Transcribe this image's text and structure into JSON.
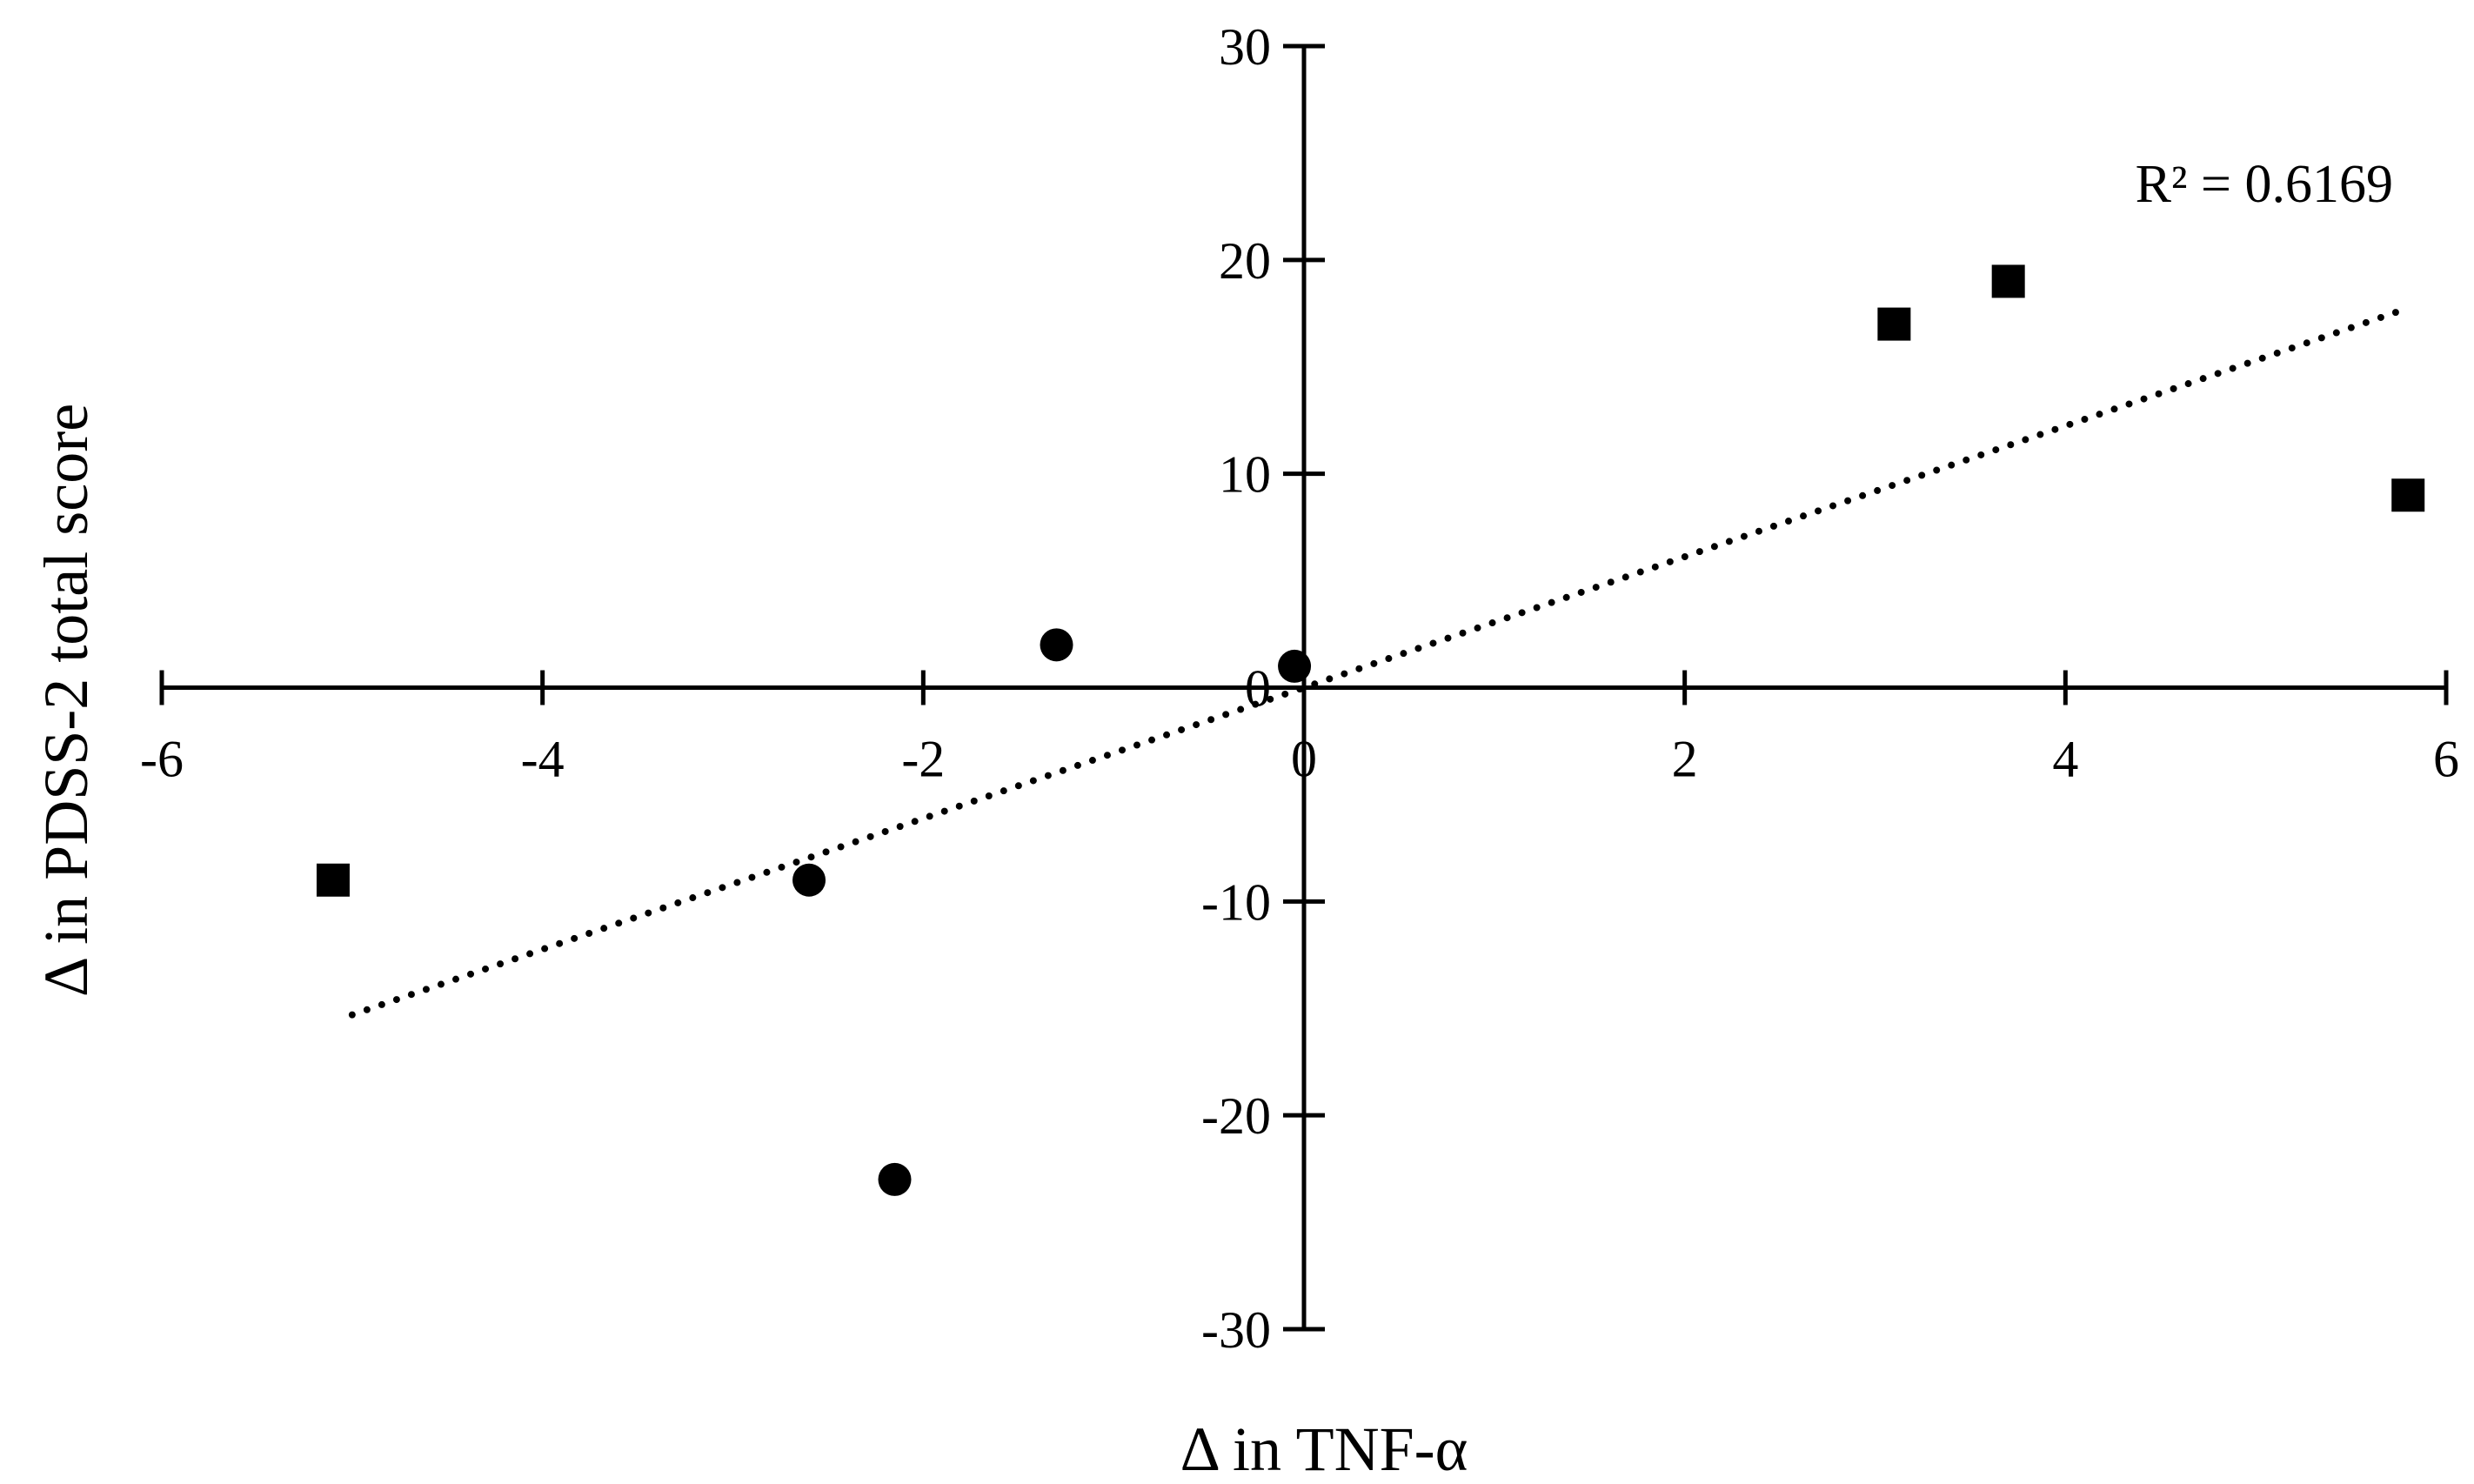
{
  "chart_data": {
    "type": "scatter",
    "title": "",
    "xlabel": "Δ in TNF-α",
    "ylabel": "Δ in PDSS-2 total score",
    "xlim": [
      -6,
      6
    ],
    "ylim": [
      -30,
      30
    ],
    "x_ticks": [
      -6,
      -4,
      -2,
      0,
      2,
      4,
      6
    ],
    "y_ticks": [
      -30,
      -20,
      -10,
      0,
      10,
      20,
      30
    ],
    "x_tick_labels": [
      "-6",
      "-4",
      "-2",
      "0",
      "2",
      "4",
      "6"
    ],
    "y_tick_labels": [
      "-30",
      "-20",
      "-10",
      "0",
      "10",
      "20",
      "30"
    ],
    "grid": false,
    "legend": "none",
    "series": [
      {
        "marker": "circle",
        "color": "#000000",
        "points": [
          {
            "x": -1.3,
            "y": 2
          },
          {
            "x": -0.05,
            "y": 1
          },
          {
            "x": -2.6,
            "y": -9
          },
          {
            "x": -2.15,
            "y": -23
          }
        ]
      },
      {
        "marker": "square",
        "color": "#000000",
        "points": [
          {
            "x": -5.1,
            "y": -9
          },
          {
            "x": 3.1,
            "y": 17
          },
          {
            "x": 3.7,
            "y": 19
          },
          {
            "x": 5.8,
            "y": 9
          }
        ]
      }
    ],
    "trendline": {
      "style": "dotted",
      "color": "#000000",
      "x_start": -5.0,
      "x_end": 5.8,
      "slope": 3.06,
      "intercept": 0.0
    },
    "annotations": [
      {
        "text": "R² = 0.6169"
      }
    ]
  }
}
